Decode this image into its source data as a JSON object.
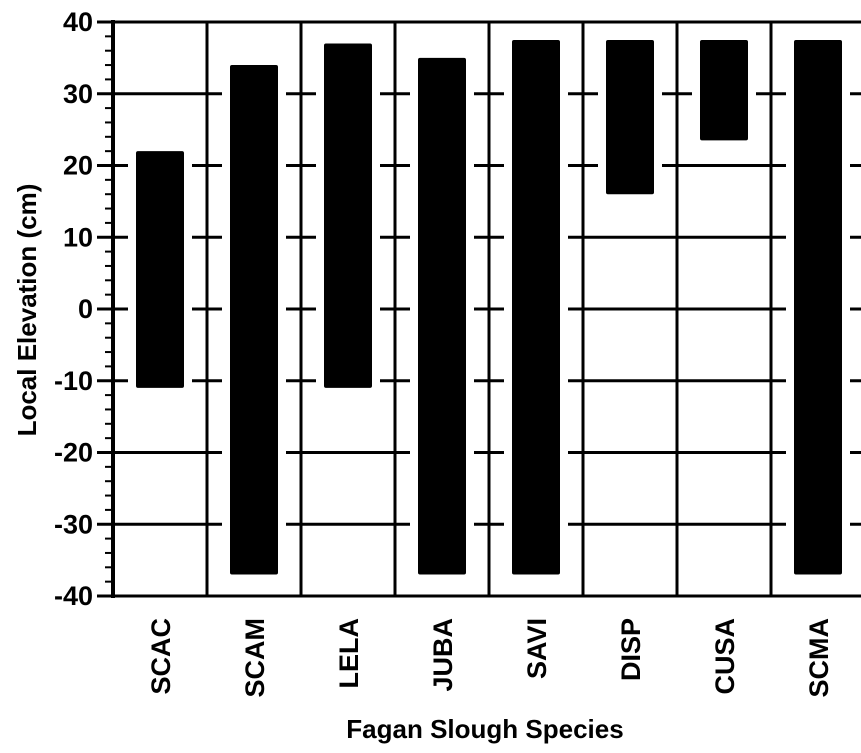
{
  "chart_data": {
    "type": "bar",
    "subtype": "floating-range",
    "xlabel": "Fagan Slough Species",
    "ylabel": "Local Elevation (cm)",
    "ylim": [
      -40,
      40
    ],
    "yticks": [
      -40,
      -30,
      -20,
      -10,
      0,
      10,
      20,
      30,
      40
    ],
    "grid": true,
    "categories": [
      "SCAC",
      "SCAM",
      "LELA",
      "JUBA",
      "SAVI",
      "DISP",
      "CUSA",
      "SCMA"
    ],
    "ranges": [
      {
        "category": "SCAC",
        "low": -11,
        "high": 22
      },
      {
        "category": "SCAM",
        "low": -37,
        "high": 34
      },
      {
        "category": "LELA",
        "low": -11,
        "high": 37
      },
      {
        "category": "JUBA",
        "low": -37,
        "high": 35
      },
      {
        "category": "SAVI",
        "low": -37,
        "high": 37.5
      },
      {
        "category": "DISP",
        "low": 16,
        "high": 37.5
      },
      {
        "category": "CUSA",
        "low": 23.5,
        "high": 37.5
      },
      {
        "category": "SCMA",
        "low": -37,
        "high": 37.5
      }
    ],
    "bar_color": "#000000"
  }
}
